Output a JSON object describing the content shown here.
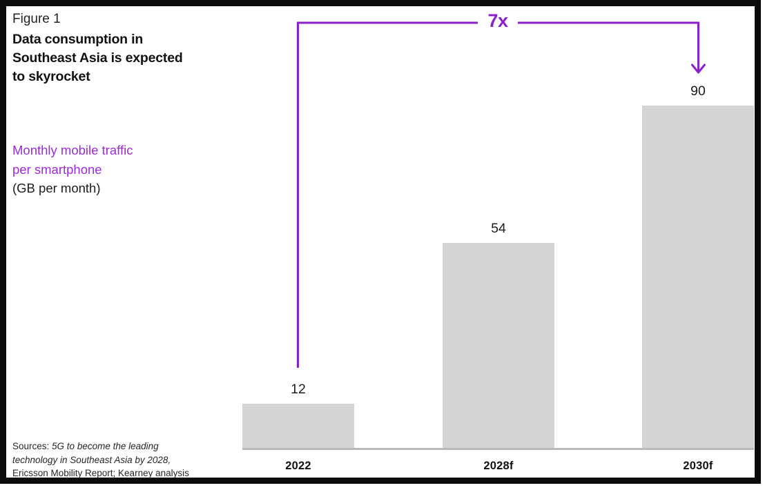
{
  "figure": {
    "label": "Figure 1",
    "title": "Data consumption in Southeast Asia is expected to skyrocket"
  },
  "axis_label": {
    "line_purple": "Monthly mobile traffic per smartphone",
    "line_unit": "(GB per month)"
  },
  "annotation": {
    "multiplier": "7x"
  },
  "sources": {
    "prefix": "Sources:",
    "italic": "5G to become the leading technology in Southeast Asia by 2028,",
    "rest": "Ericsson Mobility Report; Kearney analysis"
  },
  "colors": {
    "accent_purple": "#8C20CC",
    "label_purple": "#9B2BD9",
    "bar_gray": "#D4D4D4",
    "axis_gray": "#B9B9B9",
    "text_dark": "#1A1A1A"
  },
  "chart_data": {
    "type": "bar",
    "categories": [
      "2022",
      "2028f",
      "2030f"
    ],
    "values": [
      12,
      54,
      90
    ],
    "title": "Data consumption in Southeast Asia is expected to skyrocket",
    "xlabel": "",
    "ylabel": "Monthly mobile traffic per smartphone (GB per month)",
    "ylim": [
      0,
      90
    ],
    "grid": false,
    "legend": "none",
    "annotations": [
      "7x growth bracket from 2022 bar to 2030f bar"
    ]
  }
}
